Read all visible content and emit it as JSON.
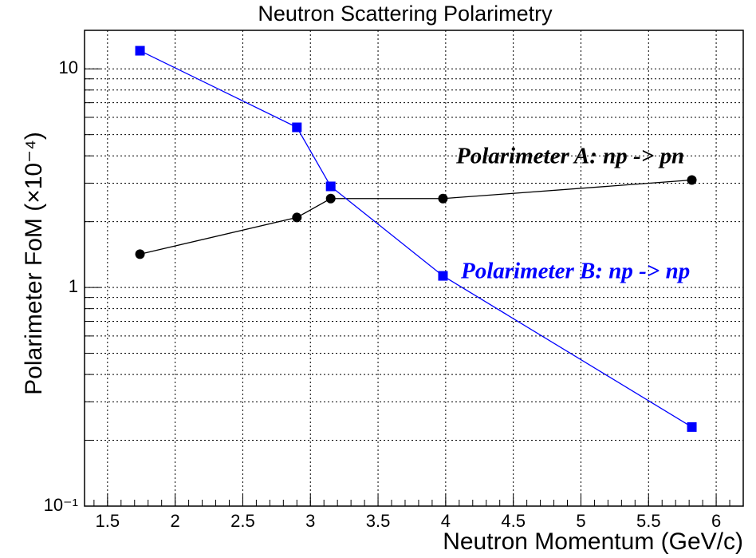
{
  "chart_data": {
    "type": "line",
    "title": "Neutron Scattering Polarimetry",
    "xlabel": "Neutron Momentum (GeV/c)",
    "ylabel": "Polarimeter FoM (×10⁻⁴)",
    "xlim": [
      1.33,
      6.2
    ],
    "ylim": [
      0.1,
      15
    ],
    "yscale": "log",
    "grid": true,
    "xticks": [
      1.5,
      2,
      2.5,
      3,
      3.5,
      4,
      4.5,
      5,
      5.5,
      6
    ],
    "yticks": [
      {
        "value": 0.1,
        "label": "10⁻¹"
      },
      1,
      10
    ],
    "series": [
      {
        "name": "Polarimeter A: np -> pn",
        "color": "#000000",
        "marker": "circle",
        "x": [
          1.74,
          2.9,
          3.15,
          3.98,
          5.82
        ],
        "values": [
          1.42,
          2.09,
          2.55,
          2.55,
          3.1
        ]
      },
      {
        "name": "Polarimeter B: np -> np",
        "color": "#0000ff",
        "marker": "square",
        "x": [
          1.74,
          2.9,
          3.15,
          3.98,
          5.82
        ],
        "values": [
          12.1,
          5.4,
          2.9,
          1.13,
          0.23
        ]
      }
    ]
  }
}
